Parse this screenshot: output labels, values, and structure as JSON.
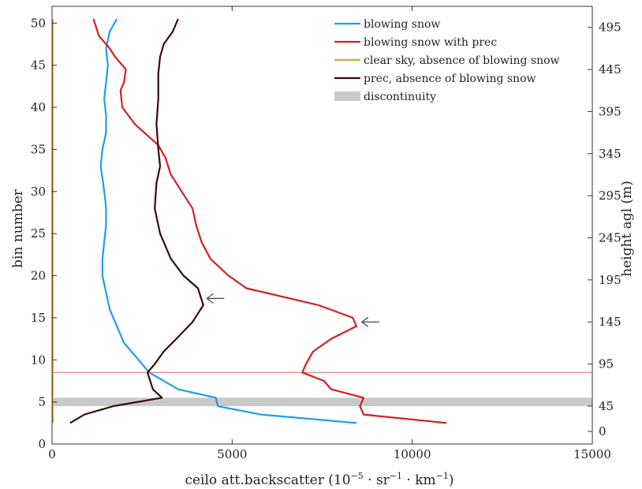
{
  "chart_data": {
    "type": "line",
    "xlabel": "ceilo att.backscatter",
    "xlabel_unit": "(10",
    "xlabel_exp": "−5",
    "xlabel_rest": " · sr",
    "xlabel_exp2": "−1",
    "xlabel_rest2": " · km",
    "xlabel_exp3": "−1",
    "xlabel_close": ")",
    "ylabel": "bin number",
    "y2label": "height agl (m)",
    "xlim": [
      0,
      15000
    ],
    "ylim": [
      0,
      52
    ],
    "xticks": [
      0,
      5000,
      10000,
      15000
    ],
    "yticks": [
      0,
      5,
      10,
      15,
      20,
      25,
      30,
      35,
      40,
      45,
      50
    ],
    "y2ticks": [
      {
        "bin": 1.5,
        "label": "0"
      },
      {
        "bin": 4.5,
        "label": "45"
      },
      {
        "bin": 9.5,
        "label": "95"
      },
      {
        "bin": 14.5,
        "label": "145"
      },
      {
        "bin": 19.5,
        "label": "195"
      },
      {
        "bin": 24.5,
        "label": "245"
      },
      {
        "bin": 29.5,
        "label": "295"
      },
      {
        "bin": 34.5,
        "label": "345"
      },
      {
        "bin": 39.5,
        "label": "395"
      },
      {
        "bin": 44.5,
        "label": "445"
      },
      {
        "bin": 49.5,
        "label": "495"
      }
    ],
    "grid": false,
    "legend_position": "top-right",
    "discontinuity": {
      "name": "discontinuity",
      "y_range": [
        4.5,
        5.5
      ],
      "color": "#c9c9c9"
    },
    "threshold_line": {
      "y": 8.5,
      "color": "#e08a80"
    },
    "series": [
      {
        "name": "blowing snow",
        "color": "#1f9ee8",
        "points": [
          [
            8450,
            2.5
          ],
          [
            5800,
            3.5
          ],
          [
            4600,
            4.5
          ],
          [
            4550,
            5.5
          ],
          [
            3500,
            6.5
          ],
          [
            2700,
            8.5
          ],
          [
            2500,
            9.5
          ],
          [
            2300,
            10.5
          ],
          [
            2000,
            12
          ],
          [
            1800,
            14
          ],
          [
            1600,
            16
          ],
          [
            1500,
            18
          ],
          [
            1400,
            20
          ],
          [
            1400,
            22
          ],
          [
            1450,
            24
          ],
          [
            1500,
            26
          ],
          [
            1500,
            28
          ],
          [
            1450,
            30
          ],
          [
            1350,
            33
          ],
          [
            1400,
            35
          ],
          [
            1500,
            37
          ],
          [
            1500,
            39
          ],
          [
            1450,
            41
          ],
          [
            1500,
            43
          ],
          [
            1550,
            45
          ],
          [
            1500,
            47
          ],
          [
            1600,
            49
          ],
          [
            1800,
            50.5
          ]
        ]
      },
      {
        "name": "blowing snow with prec",
        "color": "#d42020",
        "points": [
          [
            10950,
            2.5
          ],
          [
            8650,
            3.5
          ],
          [
            8550,
            4.5
          ],
          [
            8650,
            5.5
          ],
          [
            7750,
            6.5
          ],
          [
            7550,
            7.5
          ],
          [
            6950,
            8.5
          ],
          [
            7050,
            9.5
          ],
          [
            7250,
            11
          ],
          [
            7750,
            12.5
          ],
          [
            8450,
            14
          ],
          [
            8350,
            15
          ],
          [
            7400,
            16.5
          ],
          [
            5400,
            18.5
          ],
          [
            4900,
            20
          ],
          [
            4400,
            22
          ],
          [
            4150,
            24
          ],
          [
            4000,
            26
          ],
          [
            3900,
            28
          ],
          [
            3600,
            30
          ],
          [
            3300,
            32
          ],
          [
            3150,
            34
          ],
          [
            2950,
            35.5
          ],
          [
            2300,
            38
          ],
          [
            1950,
            40
          ],
          [
            1900,
            42
          ],
          [
            2000,
            43
          ],
          [
            2050,
            44.5
          ],
          [
            1750,
            46
          ],
          [
            1600,
            47
          ],
          [
            1300,
            48.5
          ],
          [
            1150,
            50.5
          ]
        ]
      },
      {
        "name": "clear sky, absence of blowing snow",
        "color": "#e0a040",
        "points": [
          [
            20,
            2.5
          ],
          [
            20,
            10
          ],
          [
            20,
            20
          ],
          [
            20,
            30
          ],
          [
            20,
            40
          ],
          [
            20,
            50.5
          ]
        ]
      },
      {
        "name": "prec, absence of blowing snow",
        "color": "#3a0a0a",
        "points": [
          [
            500,
            2.5
          ],
          [
            900,
            3.5
          ],
          [
            1700,
            4.5
          ],
          [
            3050,
            5.5
          ],
          [
            2800,
            6.5
          ],
          [
            2650,
            8.5
          ],
          [
            2850,
            9.5
          ],
          [
            3100,
            11
          ],
          [
            3450,
            12.5
          ],
          [
            3900,
            14.5
          ],
          [
            4200,
            16.5
          ],
          [
            4050,
            18.5
          ],
          [
            3650,
            20
          ],
          [
            3300,
            22
          ],
          [
            3000,
            25
          ],
          [
            2850,
            28
          ],
          [
            2900,
            31
          ],
          [
            3000,
            33
          ],
          [
            2950,
            35
          ],
          [
            2900,
            38
          ],
          [
            2950,
            41
          ],
          [
            2950,
            44
          ],
          [
            3000,
            46
          ],
          [
            3100,
            47.5
          ],
          [
            3350,
            49
          ],
          [
            3500,
            50.5
          ]
        ]
      }
    ],
    "markers": [
      {
        "x": 4300,
        "y": 17.3
      },
      {
        "x": 8600,
        "y": 14.5
      }
    ]
  }
}
